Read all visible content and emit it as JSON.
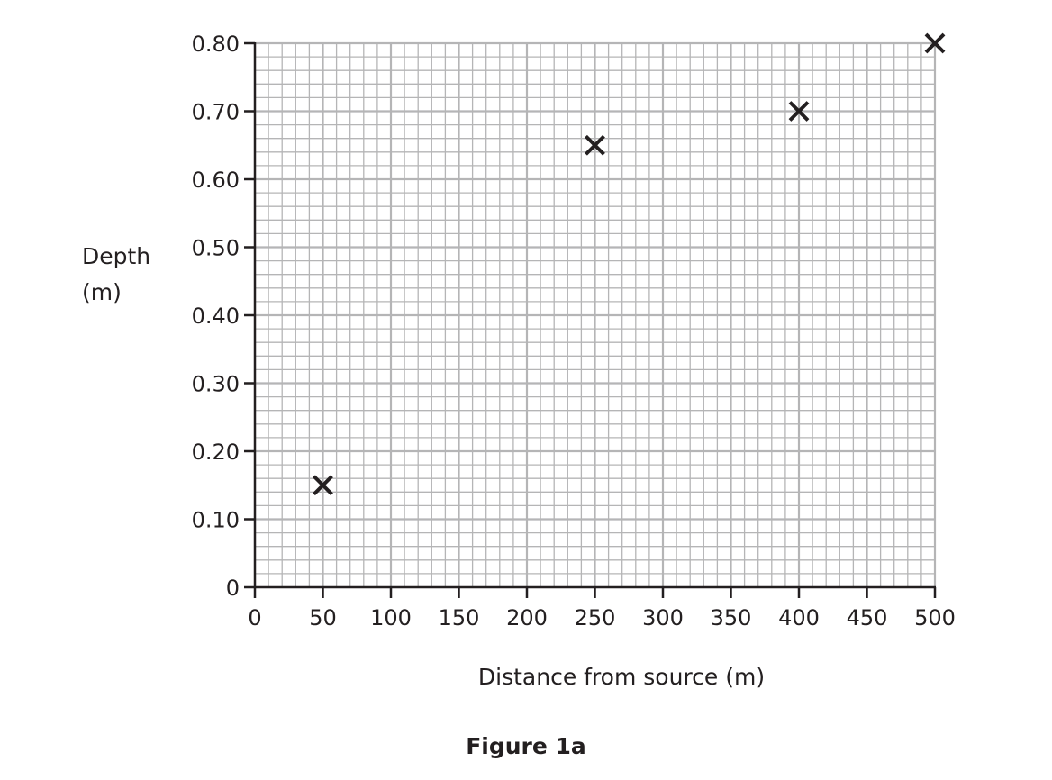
{
  "chart_data": {
    "type": "scatter",
    "title": "",
    "caption": "Figure 1a",
    "xlabel": "Distance from source (m)",
    "ylabel": [
      "Depth",
      "(m)"
    ],
    "xlim": [
      0,
      500
    ],
    "ylim": [
      0,
      0.8
    ],
    "x_ticks": [
      "0",
      "50",
      "100",
      "150",
      "200",
      "250",
      "300",
      "350",
      "400",
      "450",
      "500"
    ],
    "y_ticks": [
      "0",
      "0.10",
      "0.20",
      "0.30",
      "0.40",
      "0.50",
      "0.60",
      "0.70",
      "0.80"
    ],
    "grid": true,
    "grid_minor_x": 10,
    "grid_minor_y": 0.02,
    "marker": "x",
    "colors": {
      "grid": "#b5b5b6",
      "axis": "#231f20",
      "marker": "#231f20"
    },
    "points": [
      {
        "x": 50,
        "y": 0.15
      },
      {
        "x": 250,
        "y": 0.65
      },
      {
        "x": 400,
        "y": 0.7
      },
      {
        "x": 500,
        "y": 0.8
      }
    ]
  }
}
